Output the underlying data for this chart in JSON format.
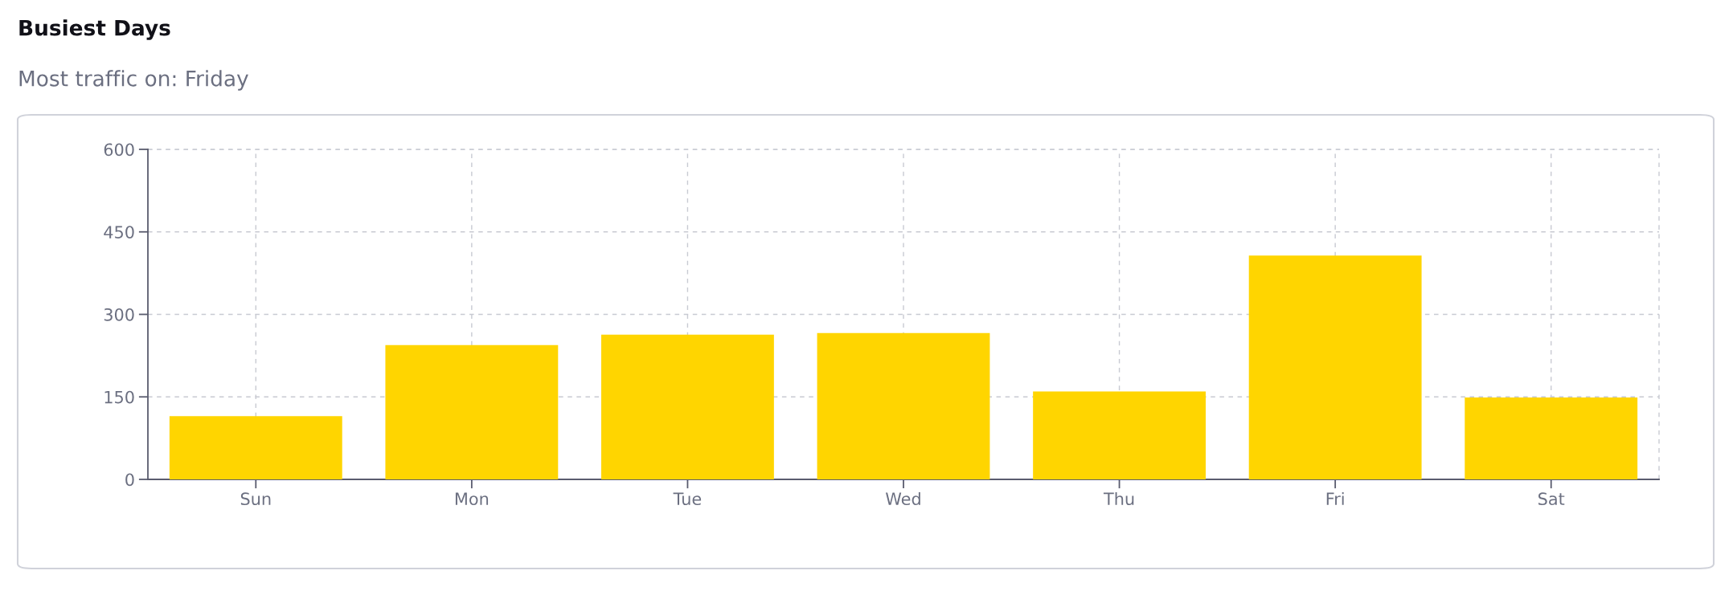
{
  "chart_data": {
    "type": "bar",
    "title": "Busiest Days",
    "subtitle": "Most traffic on: Friday",
    "categories": [
      "Sun",
      "Mon",
      "Tue",
      "Wed",
      "Thu",
      "Fri",
      "Sat"
    ],
    "values": [
      115,
      244,
      263,
      266,
      160,
      407,
      149
    ],
    "color": "#ffd500",
    "ylim": [
      0,
      600
    ],
    "yticks": [
      0,
      150,
      300,
      450,
      600
    ],
    "grid": true,
    "legend": false
  }
}
